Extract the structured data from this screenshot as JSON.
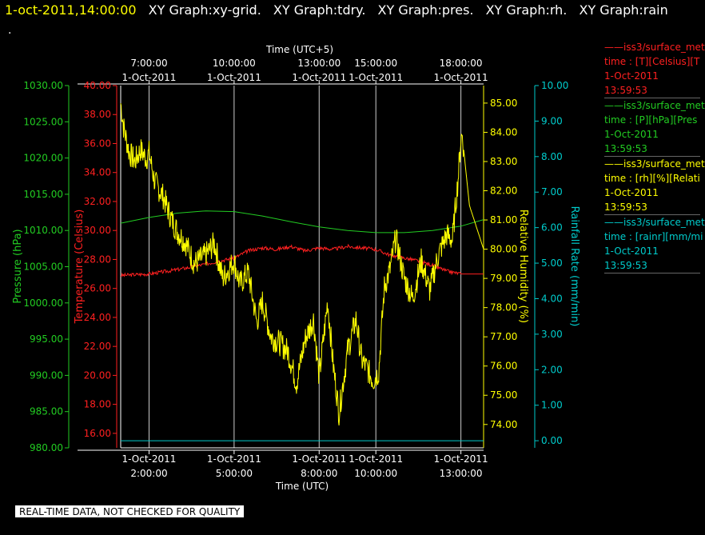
{
  "header": {
    "datetime": "1-oct-2011,14:00:00",
    "graphs": [
      "XY Graph:xy-grid.",
      "XY Graph:tdry.",
      "XY Graph:pres.",
      "XY Graph:rh.",
      "XY Graph:rain"
    ],
    "dot": "."
  },
  "banner": "REAL-TIME DATA, NOT CHECKED FOR QUALITY",
  "legend": [
    {
      "name": "iss3/surface_met",
      "line1": "time : [T][Celsius][T",
      "date": "1-Oct-2011",
      "time": "13:59:53",
      "color": "#ff2020"
    },
    {
      "name": "iss3/surface_met",
      "line1": "time : [P][hPa][Pres",
      "date": "1-Oct-2011",
      "time": "13:59:53",
      "color": "#22cc22"
    },
    {
      "name": "iss3/surface_met",
      "line1": "time : [rh][%][Relati",
      "date": "1-Oct-2011",
      "time": "13:59:53",
      "color": "#ffff00"
    },
    {
      "name": "iss3/surface_met",
      "line1": "time : [rainr][mm/mi",
      "date": "1-Oct-2011",
      "time": "13:59:53",
      "color": "#00cccc"
    }
  ],
  "colors": {
    "temperature": "#ff2020",
    "pressure": "#22cc22",
    "humidity": "#ffff00",
    "rain": "#00cccc",
    "grid": "#cccccc",
    "text": "#ffffff"
  },
  "chart_data": {
    "type": "line",
    "x_range_hours_utc": [
      1.0,
      13.8
    ],
    "x_bottom": {
      "label": "Time (UTC)",
      "ticks": [
        {
          "x": 2,
          "date": "1-Oct-2011",
          "time": "2:00:00"
        },
        {
          "x": 5,
          "date": "1-Oct-2011",
          "time": "5:00:00"
        },
        {
          "x": 8,
          "date": "1-Oct-2011",
          "time": "8:00:00"
        },
        {
          "x": 10,
          "date": "1-Oct-2011",
          "time": "10:00:00"
        },
        {
          "x": 13,
          "date": "1-Oct-2011",
          "time": "13:00:00"
        }
      ]
    },
    "x_top": {
      "label": "Time (UTC+5)",
      "ticks": [
        {
          "x": 2,
          "time": "7:00:00",
          "date": "1-Oct-2011"
        },
        {
          "x": 5,
          "time": "10:00:00",
          "date": "1-Oct-2011"
        },
        {
          "x": 8,
          "time": "13:00:00",
          "date": "1-Oct-2011"
        },
        {
          "x": 10,
          "time": "15:00:00",
          "date": "1-Oct-2011"
        },
        {
          "x": 13,
          "time": "18:00:00",
          "date": "1-Oct-2011"
        }
      ]
    },
    "y_axes": [
      {
        "id": "pres",
        "label": "Pressure (hPa)",
        "range": [
          980,
          1030
        ],
        "ticks": [
          "980.00",
          "985.00",
          "990.00",
          "995.00",
          "1000.00",
          "1005.00",
          "1010.00",
          "1015.00",
          "1020.00",
          "1025.00",
          "1030.00"
        ],
        "color": "#22cc22",
        "side": "left-outer"
      },
      {
        "id": "temp",
        "label": "Temperature (Celsius)",
        "range": [
          15,
          40
        ],
        "ticks": [
          "16.00",
          "18.00",
          "20.00",
          "22.00",
          "24.00",
          "26.00",
          "28.00",
          "30.00",
          "32.00",
          "34.00",
          "36.00",
          "38.00",
          "40.00"
        ],
        "color": "#ff2020",
        "side": "left-inner"
      },
      {
        "id": "rh",
        "label": "Relative Humidity (%)",
        "range": [
          73.2,
          85.6
        ],
        "ticks": [
          "74.00",
          "75.00",
          "76.00",
          "77.00",
          "78.00",
          "79.00",
          "80.00",
          "81.00",
          "82.00",
          "83.00",
          "84.00",
          "85.00"
        ],
        "color": "#ffff00",
        "side": "right-inner"
      },
      {
        "id": "rain",
        "label": "Rainfall Rate (mm/min)",
        "range": [
          -0.2,
          10
        ],
        "ticks": [
          "0.00",
          "1.00",
          "2.00",
          "3.00",
          "4.00",
          "5.00",
          "6.00",
          "7.00",
          "8.00",
          "9.00",
          "10.00"
        ],
        "color": "#00cccc",
        "side": "right-outer"
      }
    ],
    "series": [
      {
        "name": "iss3/surface_met",
        "axis": "pres",
        "color": "#22cc22",
        "x": [
          1.0,
          2.0,
          3.0,
          4.0,
          5.0,
          6.0,
          7.0,
          8.0,
          9.0,
          10.0,
          11.0,
          12.0,
          13.0,
          13.8
        ],
        "values": [
          1011.0,
          1011.8,
          1012.4,
          1012.7,
          1012.6,
          1012.0,
          1011.2,
          1010.5,
          1010.0,
          1009.7,
          1009.7,
          1010.0,
          1010.6,
          1011.5
        ]
      },
      {
        "name": "iss3/surface_met",
        "axis": "temp",
        "color": "#ff2020",
        "x": [
          1.0,
          2.0,
          3.0,
          3.8,
          4.5,
          5.0,
          5.5,
          6.0,
          6.5,
          7.0,
          7.5,
          8.0,
          8.5,
          9.0,
          9.5,
          10.0,
          10.5,
          11.0,
          11.5,
          12.0,
          12.5,
          13.0,
          13.8
        ],
        "values": [
          26.9,
          27.0,
          27.3,
          27.6,
          27.9,
          28.1,
          28.6,
          28.8,
          28.7,
          28.9,
          28.6,
          28.8,
          28.7,
          28.9,
          28.8,
          28.7,
          28.3,
          28.1,
          27.9,
          27.6,
          27.2,
          27.0,
          27.0
        ]
      },
      {
        "name": "iss3/surface_met",
        "axis": "rh",
        "color": "#ffff00",
        "x": [
          1.0,
          1.1,
          1.3,
          1.5,
          1.7,
          1.9,
          2.0,
          2.2,
          2.5,
          2.8,
          3.0,
          3.3,
          3.6,
          4.0,
          4.3,
          4.6,
          5.0,
          5.2,
          5.5,
          5.8,
          6.0,
          6.3,
          6.6,
          6.9,
          7.2,
          7.5,
          7.8,
          8.0,
          8.3,
          8.5,
          8.7,
          9.0,
          9.3,
          9.5,
          9.7,
          9.9,
          10.1,
          10.3,
          10.5,
          10.7,
          11.0,
          11.3,
          11.6,
          11.9,
          12.2,
          12.5,
          12.7,
          12.9,
          13.0,
          13.05,
          13.1,
          13.3,
          13.8
        ],
        "values": [
          85.0,
          84.2,
          83.3,
          83.0,
          83.4,
          83.1,
          83.3,
          82.3,
          81.8,
          81.0,
          80.6,
          80.2,
          79.5,
          79.8,
          80.2,
          79.0,
          79.6,
          78.8,
          79.2,
          77.5,
          78.2,
          77.0,
          76.8,
          76.5,
          75.4,
          76.9,
          77.6,
          75.6,
          78.2,
          76.0,
          74.4,
          76.5,
          77.6,
          76.2,
          75.9,
          75.5,
          75.8,
          78.7,
          79.3,
          80.4,
          79.0,
          78.3,
          79.6,
          78.6,
          79.8,
          80.5,
          80.3,
          82.4,
          83.8,
          83.9,
          83.4,
          81.5,
          80.0
        ]
      },
      {
        "name": "iss3/surface_met",
        "axis": "rain",
        "color": "#00cccc",
        "x": [
          1.0,
          13.8
        ],
        "values": [
          0.0,
          0.0
        ]
      }
    ],
    "grid": "vertical-only",
    "legend_position": "right"
  }
}
